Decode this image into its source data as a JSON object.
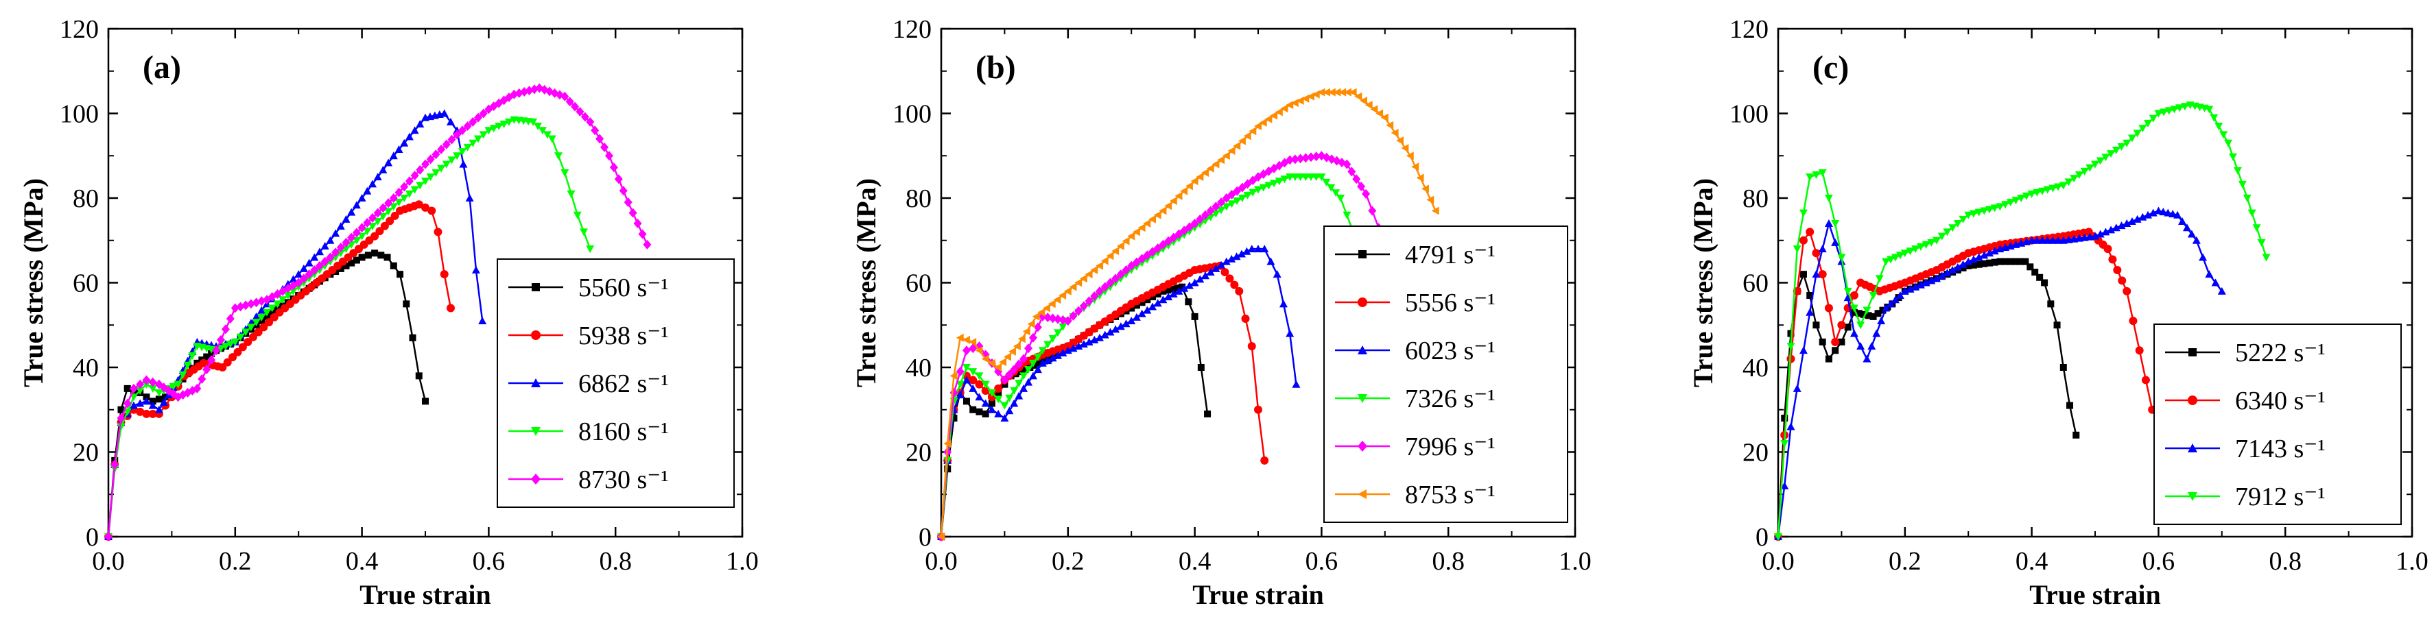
{
  "figure": {
    "series_colors": [
      "#000000",
      "#ff0000",
      "#0000ff",
      "#00ff00",
      "#ff00ff",
      "#ff8c00"
    ],
    "marker_shapes": [
      "square",
      "circle",
      "triangle-up",
      "triangle-down",
      "diamond",
      "triangle-left"
    ]
  },
  "chart_data": [
    {
      "type": "line",
      "panel_label": "(a)",
      "xlabel": "True strain",
      "ylabel": "True stress (MPa)",
      "xlim": [
        0,
        1.0
      ],
      "ylim": [
        0,
        120
      ],
      "xticks": [
        "0.0",
        "0.2",
        "0.4",
        "0.6",
        "0.8",
        "1.0"
      ],
      "yticks": [
        "0",
        "20",
        "40",
        "60",
        "80",
        "100",
        "120"
      ],
      "legend_position": "lower-right",
      "series": [
        {
          "name": "5560 s⁻¹",
          "color": "#000000",
          "marker": "square",
          "x": [
            0,
            0.01,
            0.02,
            0.03,
            0.05,
            0.07,
            0.09,
            0.11,
            0.14,
            0.17,
            0.2,
            0.25,
            0.3,
            0.35,
            0.4,
            0.42,
            0.44,
            0.46,
            0.47,
            0.48,
            0.49,
            0.5
          ],
          "y": [
            0,
            18,
            30,
            35,
            34,
            32,
            33,
            36,
            41,
            44,
            46,
            52,
            57,
            62,
            66,
            67,
            66,
            62,
            55,
            47,
            38,
            32
          ]
        },
        {
          "name": "5938 s⁻¹",
          "color": "#ff0000",
          "marker": "circle",
          "x": [
            0,
            0.01,
            0.02,
            0.04,
            0.06,
            0.08,
            0.1,
            0.12,
            0.15,
            0.18,
            0.22,
            0.27,
            0.32,
            0.37,
            0.42,
            0.46,
            0.49,
            0.51,
            0.52,
            0.53,
            0.54
          ],
          "y": [
            0,
            17,
            27,
            30,
            29,
            29,
            33,
            38,
            41,
            40,
            46,
            53,
            59,
            65,
            71,
            77,
            78.5,
            77,
            72,
            62,
            54
          ]
        },
        {
          "name": "6862 s⁻¹",
          "color": "#0000ff",
          "marker": "triangle-up",
          "x": [
            0,
            0.01,
            0.02,
            0.04,
            0.06,
            0.08,
            0.11,
            0.14,
            0.17,
            0.2,
            0.25,
            0.3,
            0.35,
            0.4,
            0.45,
            0.5,
            0.53,
            0.55,
            0.57,
            0.58,
            0.59
          ],
          "y": [
            0,
            17,
            27,
            31,
            32,
            30,
            37,
            46,
            45,
            46,
            55,
            62,
            70,
            80,
            90,
            99,
            100,
            96,
            80,
            63,
            51
          ]
        },
        {
          "name": "8160 s⁻¹",
          "color": "#00ff00",
          "marker": "triangle-down",
          "x": [
            0,
            0.01,
            0.02,
            0.04,
            0.06,
            0.08,
            0.11,
            0.14,
            0.17,
            0.2,
            0.25,
            0.3,
            0.35,
            0.4,
            0.45,
            0.5,
            0.55,
            0.6,
            0.64,
            0.67,
            0.7,
            0.72,
            0.74,
            0.76
          ],
          "y": [
            0,
            16,
            26,
            33,
            36,
            34,
            36,
            45,
            44,
            46,
            53,
            59,
            65,
            71,
            78,
            84,
            90,
            96,
            98.5,
            98,
            94,
            86,
            76,
            68
          ]
        },
        {
          "name": "8730 s⁻¹",
          "color": "#ff00ff",
          "marker": "diamond",
          "x": [
            0,
            0.01,
            0.02,
            0.04,
            0.06,
            0.08,
            0.11,
            0.14,
            0.17,
            0.2,
            0.25,
            0.3,
            0.35,
            0.4,
            0.45,
            0.5,
            0.55,
            0.6,
            0.64,
            0.68,
            0.72,
            0.76,
            0.79,
            0.82,
            0.85
          ],
          "y": [
            0,
            17,
            28,
            35,
            37,
            36,
            33,
            35,
            44,
            54,
            56,
            60,
            66,
            73,
            80,
            88,
            95,
            101,
            104.5,
            106,
            104,
            98,
            90,
            79,
            69
          ]
        }
      ]
    },
    {
      "type": "line",
      "panel_label": "(b)",
      "xlabel": "True strain",
      "ylabel": "True stress (MPa)",
      "xlim": [
        0,
        1.0
      ],
      "ylim": [
        0,
        120
      ],
      "xticks": [
        "0.0",
        "0.2",
        "0.4",
        "0.6",
        "0.8",
        "1.0"
      ],
      "yticks": [
        "0",
        "20",
        "40",
        "60",
        "80",
        "100",
        "120"
      ],
      "legend_position": "lower-right",
      "series": [
        {
          "name": "4791 s⁻¹",
          "color": "#000000",
          "marker": "square",
          "x": [
            0,
            0.01,
            0.02,
            0.03,
            0.05,
            0.07,
            0.09,
            0.11,
            0.14,
            0.17,
            0.2,
            0.25,
            0.3,
            0.35,
            0.38,
            0.4,
            0.41,
            0.42
          ],
          "y": [
            0,
            16,
            28,
            34,
            30,
            29,
            34,
            38,
            40,
            42,
            45,
            50,
            54,
            58,
            59,
            52,
            40,
            29
          ]
        },
        {
          "name": "5556 s⁻¹",
          "color": "#ff0000",
          "marker": "circle",
          "x": [
            0,
            0.01,
            0.02,
            0.04,
            0.06,
            0.08,
            0.1,
            0.13,
            0.16,
            0.2,
            0.25,
            0.3,
            0.35,
            0.4,
            0.44,
            0.47,
            0.49,
            0.5,
            0.51
          ],
          "y": [
            0,
            18,
            30,
            38,
            36,
            33,
            37,
            41,
            43,
            45,
            50,
            55,
            59,
            63,
            64,
            58,
            45,
            30,
            18
          ]
        },
        {
          "name": "6023 s⁻¹",
          "color": "#0000ff",
          "marker": "triangle-up",
          "x": [
            0,
            0.01,
            0.02,
            0.04,
            0.06,
            0.08,
            0.1,
            0.13,
            0.16,
            0.2,
            0.25,
            0.3,
            0.35,
            0.4,
            0.45,
            0.49,
            0.51,
            0.53,
            0.55,
            0.56
          ],
          "y": [
            0,
            18,
            30,
            37,
            33,
            30,
            28,
            35,
            41,
            44,
            47,
            51,
            56,
            60,
            65,
            68,
            68,
            62,
            48,
            36
          ]
        },
        {
          "name": "7326 s⁻¹",
          "color": "#00ff00",
          "marker": "triangle-down",
          "x": [
            0,
            0.01,
            0.02,
            0.04,
            0.06,
            0.08,
            0.1,
            0.13,
            0.16,
            0.2,
            0.25,
            0.3,
            0.35,
            0.4,
            0.45,
            0.5,
            0.55,
            0.6,
            0.63,
            0.65
          ],
          "y": [
            0,
            18,
            32,
            40,
            38,
            34,
            31,
            38,
            44,
            51,
            57,
            63,
            68,
            73,
            78,
            82,
            85,
            85,
            80,
            72
          ]
        },
        {
          "name": "7996 s⁻¹",
          "color": "#ff00ff",
          "marker": "diamond",
          "x": [
            0,
            0.01,
            0.02,
            0.04,
            0.06,
            0.08,
            0.1,
            0.13,
            0.16,
            0.2,
            0.25,
            0.3,
            0.35,
            0.4,
            0.45,
            0.5,
            0.55,
            0.6,
            0.64,
            0.67,
            0.69
          ],
          "y": [
            0,
            20,
            34,
            44,
            45,
            41,
            37,
            42,
            52,
            51,
            58,
            64,
            69,
            74,
            80,
            85,
            89,
            90,
            88,
            81,
            73
          ]
        },
        {
          "name": "8753 s⁻¹",
          "color": "#ff8c00",
          "marker": "triangle-left",
          "x": [
            0,
            0.01,
            0.02,
            0.03,
            0.05,
            0.07,
            0.09,
            0.12,
            0.15,
            0.2,
            0.25,
            0.3,
            0.35,
            0.4,
            0.45,
            0.5,
            0.55,
            0.6,
            0.65,
            0.7,
            0.74,
            0.78
          ],
          "y": [
            0,
            22,
            38,
            47,
            46,
            42,
            40,
            45,
            52,
            58,
            64,
            71,
            77,
            84,
            90,
            97,
            102,
            105,
            105,
            99,
            90,
            77
          ]
        }
      ]
    },
    {
      "type": "line",
      "panel_label": "(c)",
      "xlabel": "True strain",
      "ylabel": "True stress (MPa)",
      "xlim": [
        0,
        1.0
      ],
      "ylim": [
        0,
        120
      ],
      "xticks": [
        "0.0",
        "0.2",
        "0.4",
        "0.6",
        "0.8",
        "1.0"
      ],
      "yticks": [
        "0",
        "20",
        "40",
        "60",
        "80",
        "100",
        "120"
      ],
      "legend_position": "lower-right",
      "series": [
        {
          "name": "5222 s⁻¹",
          "color": "#000000",
          "marker": "square",
          "x": [
            0,
            0.01,
            0.02,
            0.03,
            0.04,
            0.05,
            0.06,
            0.08,
            0.1,
            0.12,
            0.15,
            0.18,
            0.2,
            0.25,
            0.3,
            0.35,
            0.39,
            0.42,
            0.44,
            0.45,
            0.46,
            0.47
          ],
          "y": [
            0,
            28,
            48,
            58,
            62,
            57,
            50,
            42,
            46,
            53,
            52,
            55,
            58,
            61,
            64,
            65,
            65,
            60,
            50,
            40,
            31,
            24
          ]
        },
        {
          "name": "6340 s⁻¹",
          "color": "#ff0000",
          "marker": "circle",
          "x": [
            0,
            0.01,
            0.02,
            0.03,
            0.04,
            0.05,
            0.07,
            0.09,
            0.11,
            0.13,
            0.16,
            0.2,
            0.25,
            0.3,
            0.35,
            0.4,
            0.45,
            0.49,
            0.52,
            0.55,
            0.57,
            0.59
          ],
          "y": [
            0,
            24,
            42,
            58,
            70,
            72,
            62,
            46,
            54,
            60,
            58,
            60,
            63,
            67,
            69,
            70,
            71,
            72,
            68,
            58,
            44,
            30
          ]
        },
        {
          "name": "7143 s⁻¹",
          "color": "#0000ff",
          "marker": "triangle-up",
          "x": [
            0,
            0.01,
            0.02,
            0.04,
            0.06,
            0.08,
            0.1,
            0.12,
            0.14,
            0.17,
            0.2,
            0.25,
            0.3,
            0.35,
            0.4,
            0.45,
            0.5,
            0.55,
            0.6,
            0.63,
            0.66,
            0.68,
            0.7
          ],
          "y": [
            0,
            12,
            26,
            44,
            62,
            74,
            65,
            48,
            42,
            54,
            58,
            61,
            65,
            68,
            70,
            70,
            71,
            74,
            77,
            76,
            70,
            62,
            58
          ]
        },
        {
          "name": "7912 s⁻¹",
          "color": "#00ff00",
          "marker": "triangle-down",
          "x": [
            0,
            0.01,
            0.02,
            0.03,
            0.05,
            0.07,
            0.09,
            0.11,
            0.13,
            0.15,
            0.17,
            0.2,
            0.25,
            0.3,
            0.35,
            0.4,
            0.45,
            0.5,
            0.55,
            0.6,
            0.65,
            0.68,
            0.71,
            0.74,
            0.77
          ],
          "y": [
            0,
            22,
            45,
            68,
            85,
            86,
            74,
            58,
            50,
            57,
            65,
            67,
            70,
            76,
            78,
            81,
            83,
            88,
            93,
            100,
            102,
            101,
            93,
            80,
            66
          ]
        }
      ]
    }
  ]
}
